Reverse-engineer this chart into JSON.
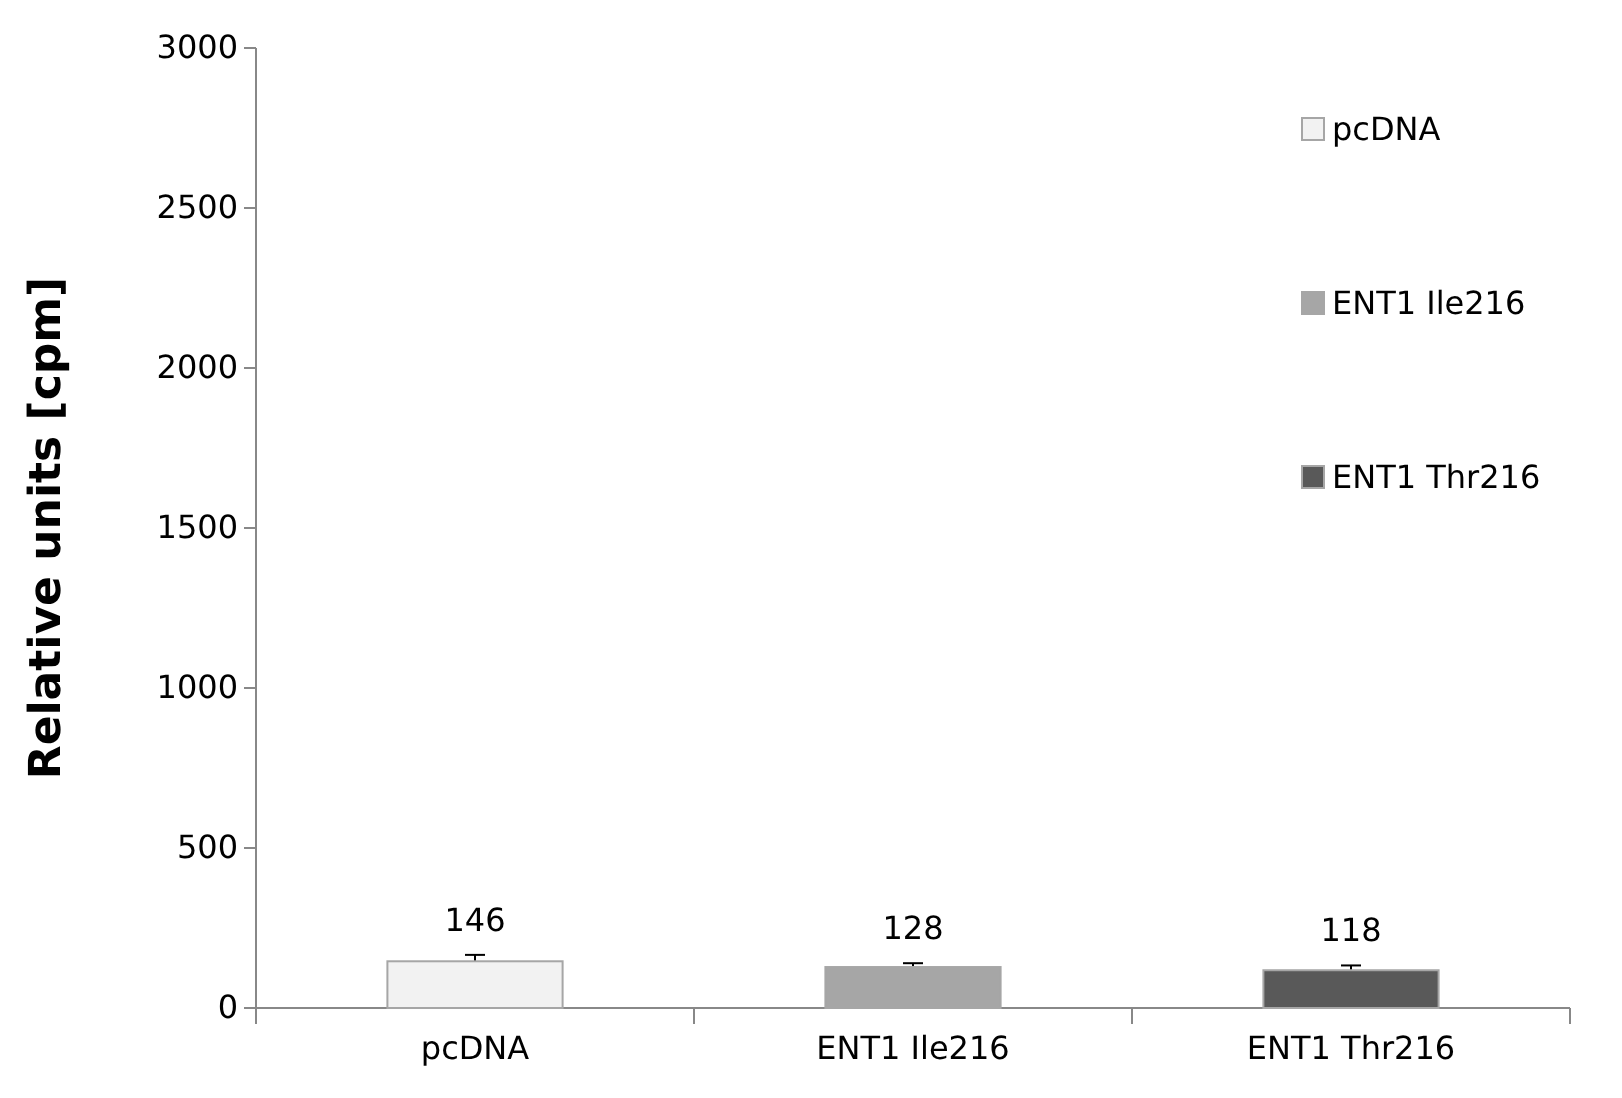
{
  "chart_data": {
    "type": "bar",
    "ylabel": "Relative units [cpm]",
    "categories": [
      "pcDNA",
      "ENT1 Ile216",
      "ENT1 Thr216"
    ],
    "series": [
      {
        "name": "pcDNA",
        "color": "#f2f2f2",
        "values": [
          146,
          null,
          null
        ],
        "errors": [
          20,
          null,
          null
        ]
      },
      {
        "name": "ENT1 Ile216",
        "color": "#a6a6a6",
        "values": [
          null,
          128,
          null
        ],
        "errors": [
          null,
          12,
          null
        ]
      },
      {
        "name": "ENT1 Thr216",
        "color": "#595959",
        "values": [
          null,
          null,
          118
        ],
        "errors": [
          null,
          null,
          15
        ]
      }
    ],
    "ylim": [
      0,
      3000
    ],
    "yticks": [
      0,
      500,
      1000,
      1500,
      2000,
      2500,
      3000
    ],
    "data_labels": true,
    "legend": "top right"
  }
}
